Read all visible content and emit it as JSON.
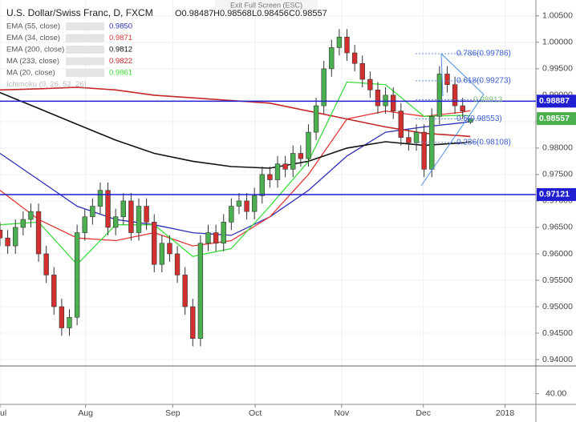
{
  "header": {
    "title": "U.S. Dollar/Swiss Franc, D, FXCM",
    "ohlc_labels": [
      "O0.98487",
      "H0.98568",
      "L0.98456",
      "C0.98557"
    ],
    "exit_button": "Exit Full Screen (ESC)"
  },
  "chart_data": {
    "type": "candlestick",
    "up_color": "#4caf50",
    "down_color": "#d32f2f",
    "xlim": [
      0,
      69.5
    ],
    "ylim": [
      0.9391,
      1.008
    ],
    "xticks": [
      {
        "value": 0,
        "label": "ul"
      },
      {
        "value": 11.1,
        "label": "Aug"
      },
      {
        "value": 22.4,
        "label": "Sep"
      },
      {
        "value": 33.1,
        "label": "Oct"
      },
      {
        "value": 44.3,
        "label": "Nov"
      },
      {
        "value": 54.9,
        "label": "Dec"
      },
      {
        "value": 65.5,
        "label": "2018"
      }
    ],
    "yticks": [
      {
        "value": 0.94,
        "label": "0.94000"
      },
      {
        "value": 0.945,
        "label": "0.94500"
      },
      {
        "value": 0.95,
        "label": "0.95000"
      },
      {
        "value": 0.955,
        "label": "0.95500"
      },
      {
        "value": 0.96,
        "label": "0.96000"
      },
      {
        "value": 0.965,
        "label": "0.96500"
      },
      {
        "value": 0.97,
        "label": "0.97000"
      },
      {
        "value": 0.975,
        "label": "0.97500"
      },
      {
        "value": 0.98,
        "label": "0.98000"
      },
      {
        "value": 0.985,
        "label": "0.98500"
      },
      {
        "value": 0.99,
        "label": "0.99000"
      },
      {
        "value": 0.995,
        "label": "0.99500"
      },
      {
        "value": 1.0,
        "label": "1.00000"
      },
      {
        "value": 1.005,
        "label": "1.00500"
      }
    ],
    "candles": {
      "x": [
        0,
        1,
        2,
        3,
        4,
        5,
        6,
        7,
        8,
        9,
        10,
        11,
        12,
        13,
        14,
        15,
        16,
        17,
        18,
        19,
        20,
        21,
        22,
        23,
        24,
        25,
        26,
        27,
        28,
        29,
        30,
        31,
        32,
        33,
        34,
        35,
        36,
        37,
        38,
        39,
        40,
        41,
        42,
        43,
        44,
        45,
        46,
        47,
        48,
        49,
        50,
        51,
        52,
        53,
        54,
        55,
        56,
        57,
        58,
        59,
        60,
        61
      ],
      "open": [
        0.9645,
        0.963,
        0.9615,
        0.965,
        0.9665,
        0.968,
        0.96,
        0.956,
        0.95,
        0.946,
        0.948,
        0.964,
        0.967,
        0.969,
        0.972,
        0.965,
        0.967,
        0.97,
        0.964,
        0.969,
        0.966,
        0.958,
        0.962,
        0.96,
        0.956,
        0.95,
        0.944,
        0.962,
        0.964,
        0.962,
        0.966,
        0.969,
        0.97,
        0.968,
        0.971,
        0.975,
        0.974,
        0.977,
        0.976,
        0.979,
        0.978,
        0.983,
        0.988,
        0.995,
        0.999,
        1.001,
        0.998,
        0.996,
        0.993,
        0.991,
        0.988,
        0.99,
        0.987,
        0.982,
        0.981,
        0.983,
        0.976,
        0.986,
        0.994,
        0.992,
        0.988,
        0.98487
      ],
      "high": [
        0.966,
        0.9645,
        0.9665,
        0.968,
        0.9695,
        0.9695,
        0.9615,
        0.9575,
        0.9515,
        0.9495,
        0.9655,
        0.9685,
        0.9705,
        0.9735,
        0.9735,
        0.9685,
        0.9715,
        0.9715,
        0.9705,
        0.9705,
        0.9675,
        0.9635,
        0.9635,
        0.9615,
        0.9575,
        0.9515,
        0.9635,
        0.9655,
        0.9655,
        0.9675,
        0.9705,
        0.9715,
        0.9715,
        0.9725,
        0.9765,
        0.9765,
        0.9785,
        0.9785,
        0.9805,
        0.9805,
        0.9845,
        0.9895,
        0.9965,
        1.0005,
        1.0025,
        1.0025,
        0.9995,
        0.9975,
        0.9945,
        0.9925,
        0.9915,
        0.9915,
        0.9885,
        0.9835,
        0.9845,
        0.9845,
        0.9875,
        0.9955,
        0.9955,
        0.9935,
        0.9895,
        0.98568
      ],
      "low": [
        0.9615,
        0.96,
        0.96,
        0.9635,
        0.965,
        0.9585,
        0.9545,
        0.9485,
        0.9445,
        0.9445,
        0.9465,
        0.9625,
        0.9655,
        0.9675,
        0.9635,
        0.9635,
        0.9655,
        0.9625,
        0.9625,
        0.9645,
        0.9565,
        0.9565,
        0.9585,
        0.9545,
        0.9485,
        0.9425,
        0.9425,
        0.9605,
        0.9605,
        0.9605,
        0.9645,
        0.9675,
        0.9665,
        0.9665,
        0.9695,
        0.9725,
        0.9725,
        0.9745,
        0.9745,
        0.9765,
        0.9765,
        0.9815,
        0.9865,
        0.9935,
        0.9975,
        0.9965,
        0.9945,
        0.9915,
        0.9895,
        0.9865,
        0.9865,
        0.9855,
        0.9805,
        0.9795,
        0.9795,
        0.9745,
        0.9745,
        0.9845,
        0.9905,
        0.9865,
        0.9855,
        0.98456
      ],
      "close": [
        0.963,
        0.9615,
        0.965,
        0.9665,
        0.968,
        0.96,
        0.956,
        0.95,
        0.946,
        0.948,
        0.964,
        0.967,
        0.969,
        0.972,
        0.965,
        0.967,
        0.97,
        0.964,
        0.969,
        0.966,
        0.958,
        0.962,
        0.96,
        0.956,
        0.95,
        0.944,
        0.962,
        0.964,
        0.962,
        0.966,
        0.969,
        0.97,
        0.968,
        0.971,
        0.975,
        0.974,
        0.977,
        0.976,
        0.979,
        0.978,
        0.983,
        0.988,
        0.995,
        0.999,
        1.001,
        0.998,
        0.996,
        0.993,
        0.991,
        0.988,
        0.99,
        0.987,
        0.982,
        0.981,
        0.983,
        0.976,
        0.986,
        0.994,
        0.992,
        0.988,
        0.987,
        0.98557
      ]
    },
    "lines": [
      {
        "name": "EMA (55, close)",
        "color": "#2e2eb8",
        "last_label": "0.9850",
        "x": [
          0,
          5,
          10,
          15,
          20,
          25,
          30,
          35,
          40,
          45,
          50,
          55,
          60,
          61
        ],
        "values": [
          0.979,
          0.974,
          0.969,
          0.9665,
          0.9655,
          0.964,
          0.9635,
          0.967,
          0.972,
          0.9785,
          0.983,
          0.984,
          0.9848,
          0.985
        ]
      },
      {
        "name": "EMA (34, close)",
        "color": "#e53935",
        "last_label": "0.9871",
        "x": [
          0,
          5,
          10,
          15,
          20,
          25,
          30,
          35,
          40,
          45,
          50,
          55,
          60,
          61
        ],
        "values": [
          0.972,
          0.9665,
          0.963,
          0.9625,
          0.964,
          0.9615,
          0.9625,
          0.967,
          0.975,
          0.9855,
          0.987,
          0.986,
          0.9868,
          0.9871
        ]
      },
      {
        "name": "EMA (200, close)",
        "color": "#111111",
        "last_label": "0.9812",
        "x": [
          0,
          5,
          10,
          15,
          20,
          25,
          30,
          35,
          40,
          45,
          50,
          55,
          60,
          61
        ],
        "values": [
          0.9905,
          0.9875,
          0.9845,
          0.9815,
          0.979,
          0.9775,
          0.9765,
          0.9762,
          0.9775,
          0.98,
          0.9812,
          0.9805,
          0.981,
          0.9812
        ]
      },
      {
        "name": "MA (233, close)",
        "color": "#c62828",
        "last_label": "0.9822",
        "x": [
          0,
          5,
          10,
          15,
          20,
          25,
          30,
          35,
          40,
          45,
          50,
          55,
          60,
          61
        ],
        "values": [
          0.991,
          0.9912,
          0.9915,
          0.991,
          0.99,
          0.9895,
          0.989,
          0.9885,
          0.987,
          0.9855,
          0.984,
          0.9828,
          0.9823,
          0.9822
        ]
      },
      {
        "name": "MA (20, close)",
        "color": "#3ddc3d",
        "last_label": "0.9861",
        "x": [
          0,
          5,
          10,
          15,
          20,
          25,
          30,
          35,
          40,
          45,
          50,
          55,
          60,
          61
        ],
        "values": [
          0.9655,
          0.966,
          0.958,
          0.9655,
          0.9655,
          0.9595,
          0.961,
          0.969,
          0.9775,
          0.9925,
          0.992,
          0.986,
          0.9862,
          0.9861
        ]
      }
    ],
    "ichimoku_label": "Ichimoku (9, 26, 52, 26)",
    "levels": [
      {
        "value": 0.98887,
        "label": "0.98887",
        "color": "#1f1fd1"
      },
      {
        "value": 0.97121,
        "label": "0.97121",
        "color": "#1f1fd1"
      }
    ],
    "last_price": {
      "value": 0.98557,
      "label": "0.98557",
      "color": "#4caf50"
    },
    "fib_levels": [
      {
        "value": 0.99786,
        "label": "0.786(0.99786)"
      },
      {
        "value": 0.99273,
        "label": "0.618(0.99273)"
      },
      {
        "value": 0.98913,
        "label": "0.98913"
      },
      {
        "value": 0.98553,
        "label": "0.5(0.98553)"
      },
      {
        "value": 0.98108,
        "label": "0.236(0.98108)"
      }
    ],
    "lower_pane": {
      "ylim": [
        35,
        53
      ],
      "yticks": [
        {
          "value": 40,
          "label": "40.00"
        }
      ]
    }
  }
}
